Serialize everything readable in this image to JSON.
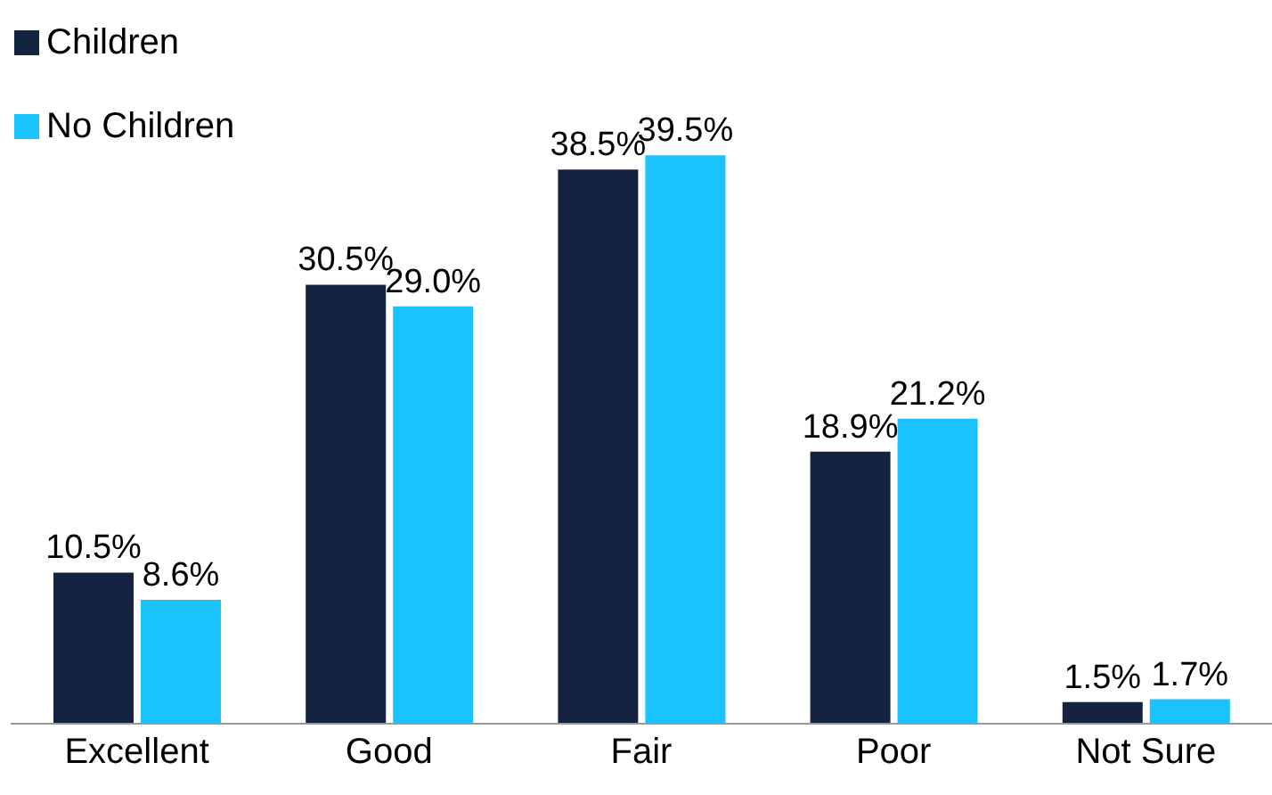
{
  "chart_data": {
    "type": "bar",
    "categories": [
      "Excellent",
      "Good",
      "Fair",
      "Poor",
      "Not Sure"
    ],
    "series": [
      {
        "name": "Children",
        "color": "#14233f",
        "values": [
          10.5,
          30.5,
          38.5,
          18.9,
          1.5
        ],
        "value_labels": [
          "10.5%",
          "30.5%",
          "38.5%",
          "18.9%",
          "1.5%"
        ]
      },
      {
        "name": "No Children",
        "color": "#1ac3fd",
        "values": [
          8.6,
          29.0,
          39.5,
          21.2,
          1.7
        ],
        "value_labels": [
          "8.6%",
          "29.0%",
          "39.5%",
          "21.2%",
          "1.7%"
        ]
      }
    ],
    "legend": "top left",
    "grid": false
  }
}
